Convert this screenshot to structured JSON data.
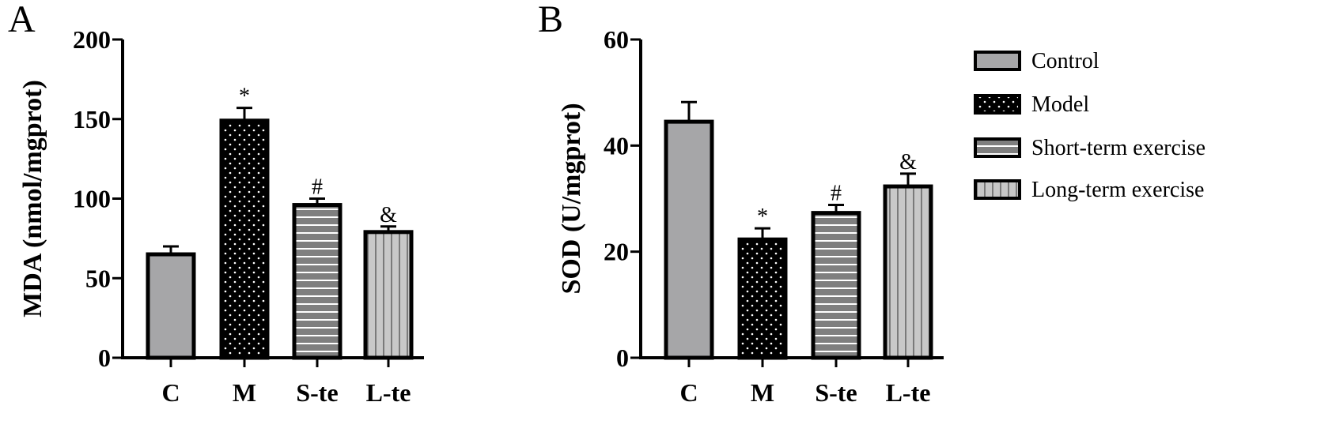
{
  "chart_data": [
    {
      "type": "bar",
      "panel": "A",
      "title": "",
      "xlabel": "",
      "ylabel": "MDA (nmol/mgprot)",
      "ylim": [
        0,
        200
      ],
      "yticks": [
        0,
        50,
        100,
        150,
        200
      ],
      "categories": [
        "C",
        "M",
        "S-te",
        "L-te"
      ],
      "values": [
        65,
        149,
        96,
        79
      ],
      "errors": [
        5,
        8,
        4,
        3.5
      ],
      "annotations": [
        "",
        "*",
        "#",
        "&"
      ]
    },
    {
      "type": "bar",
      "panel": "B",
      "title": "",
      "xlabel": "",
      "ylabel": "SOD (U/mgprot)",
      "ylim": [
        0,
        60
      ],
      "yticks": [
        0,
        20,
        40,
        60
      ],
      "categories": [
        "C",
        "M",
        "S-te",
        "L-te"
      ],
      "values": [
        44.5,
        22.3,
        27.3,
        32.3
      ],
      "errors": [
        3.7,
        2.1,
        1.5,
        2.4
      ],
      "annotations": [
        "",
        "*",
        "#",
        "&"
      ]
    }
  ],
  "legend": {
    "placement": "right",
    "entries": [
      "Control",
      "Model",
      "Short-term exercise",
      "Long-term exercise"
    ]
  },
  "styles": {
    "bar_fills": [
      "#a6a6a8",
      "#000000",
      "#7f7f7f",
      "#c8c8c8"
    ],
    "bar_patterns": [
      "solid",
      "dots",
      "horizontal-lines",
      "vertical-lines"
    ],
    "stroke_color": "#000000"
  }
}
